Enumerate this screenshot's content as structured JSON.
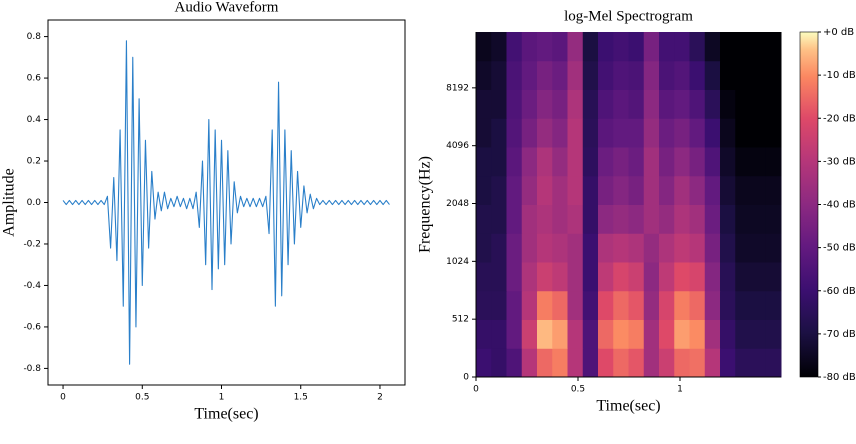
{
  "chart_data": [
    {
      "type": "line",
      "title": "Audio Waveform",
      "xlabel": "Time(sec)",
      "ylabel": "Amplitude",
      "color": "#2a7fc9",
      "xlim": [
        -0.095,
        2.158
      ],
      "ylim": [
        -0.88,
        0.88
      ],
      "xticks": [
        0,
        0.5,
        1,
        1.5,
        2
      ],
      "yticks": [
        -0.8,
        -0.6,
        -0.4,
        -0.2,
        {
          "value": 0,
          "label": "0.0"
        },
        0.2,
        0.4,
        0.6,
        0.8
      ],
      "x": [
        0,
        0.02,
        0.04,
        0.06,
        0.08,
        0.1,
        0.12,
        0.14,
        0.16,
        0.18,
        0.2,
        0.22,
        0.24,
        0.26,
        0.28,
        0.3,
        0.32,
        0.34,
        0.36,
        0.38,
        0.4,
        0.42,
        0.44,
        0.46,
        0.48,
        0.5,
        0.52,
        0.54,
        0.56,
        0.58,
        0.6,
        0.62,
        0.64,
        0.66,
        0.68,
        0.7,
        0.72,
        0.74,
        0.76,
        0.78,
        0.8,
        0.82,
        0.84,
        0.86,
        0.88,
        0.9,
        0.92,
        0.94,
        0.96,
        0.98,
        1,
        1.02,
        1.04,
        1.06,
        1.08,
        1.1,
        1.12,
        1.14,
        1.16,
        1.18,
        1.2,
        1.22,
        1.24,
        1.26,
        1.28,
        1.3,
        1.32,
        1.34,
        1.36,
        1.38,
        1.4,
        1.42,
        1.44,
        1.46,
        1.48,
        1.5,
        1.52,
        1.54,
        1.56,
        1.58,
        1.6,
        1.62,
        1.64,
        1.66,
        1.68,
        1.7,
        1.72,
        1.74,
        1.76,
        1.78,
        1.8,
        1.82,
        1.84,
        1.86,
        1.88,
        1.9,
        1.92,
        1.94,
        1.96,
        1.98,
        2,
        2.02,
        2.04,
        2.06
      ],
      "values": [
        0.01,
        -0.01,
        0.01,
        -0.01,
        0.01,
        -0.01,
        0.01,
        -0.01,
        0.01,
        -0.01,
        0.01,
        -0.01,
        0.01,
        -0.01,
        0.03,
        -0.22,
        0.12,
        -0.28,
        0.35,
        -0.5,
        0.78,
        -0.78,
        0.7,
        -0.6,
        0.5,
        -0.4,
        0.3,
        -0.22,
        0.15,
        -0.08,
        0.05,
        -0.04,
        0.05,
        -0.03,
        0.02,
        -0.02,
        0.03,
        -0.02,
        0.02,
        -0.03,
        0.02,
        -0.03,
        0.05,
        -0.12,
        0.2,
        -0.3,
        0.4,
        -0.42,
        0.35,
        -0.32,
        0.3,
        -0.3,
        0.25,
        -0.2,
        0.1,
        -0.05,
        0.03,
        -0.02,
        0.02,
        -0.02,
        0.02,
        -0.02,
        0.02,
        -0.02,
        0.03,
        -0.15,
        0.35,
        -0.5,
        0.58,
        -0.45,
        0.35,
        -0.3,
        0.25,
        -0.2,
        0.15,
        -0.12,
        0.08,
        -0.05,
        0.04,
        -0.03,
        0.02,
        -0.01,
        0.01,
        -0.01,
        0.01,
        -0.01,
        0.01,
        -0.01,
        0.01,
        -0.01,
        0.01,
        -0.01,
        0.01,
        -0.01,
        0.01,
        -0.01,
        0.01,
        -0.01,
        0.01,
        -0.01,
        0.01,
        -0.01,
        0.01,
        -0.01
      ]
    },
    {
      "type": "heatmap",
      "title": "log-Mel Spectrogram",
      "xlabel": "Time(sec)",
      "ylabel": "Frequency(Hz)",
      "cmap": "magma",
      "xlim": [
        0,
        1.495
      ],
      "ylim": [
        0,
        16000
      ],
      "yscale": "symlog",
      "linthresh": 512,
      "xticks": [
        0,
        0.5,
        1
      ],
      "yticks": [
        0,
        512,
        1024,
        2048,
        4096,
        8192
      ],
      "clim": [
        -80,
        0
      ],
      "colorbar_ticks": [
        {
          "value": 0,
          "label": "+0 dB"
        },
        {
          "value": -10,
          "label": "-10 dB"
        },
        {
          "value": -20,
          "label": "-20 dB"
        },
        {
          "value": -30,
          "label": "-30 dB"
        },
        {
          "value": -40,
          "label": "-40 dB"
        },
        {
          "value": -50,
          "label": "-50 dB"
        },
        {
          "value": -60,
          "label": "-60 dB"
        },
        {
          "value": -70,
          "label": "-70 dB"
        },
        {
          "value": -80,
          "label": "-80 dB"
        }
      ],
      "values": [
        [
          -60,
          -62,
          -55,
          -30,
          -15,
          -12,
          -30,
          -55,
          -20,
          -15,
          -18,
          -35,
          -25,
          -15,
          -14,
          -30,
          -60,
          -65,
          -65,
          -65
        ],
        [
          -62,
          -62,
          -50,
          -25,
          -5,
          -8,
          -30,
          -55,
          -15,
          -10,
          -12,
          -35,
          -20,
          -8,
          -10,
          -35,
          -62,
          -68,
          -68,
          -68
        ],
        [
          -65,
          -65,
          -50,
          -30,
          -12,
          -15,
          -35,
          -58,
          -20,
          -15,
          -18,
          -38,
          -22,
          -12,
          -15,
          -40,
          -65,
          -70,
          -70,
          -70
        ],
        [
          -66,
          -66,
          -48,
          -32,
          -25,
          -28,
          -35,
          -60,
          -28,
          -22,
          -25,
          -40,
          -28,
          -20,
          -22,
          -42,
          -66,
          -72,
          -72,
          -72
        ],
        [
          -68,
          -66,
          -48,
          -35,
          -30,
          -32,
          -35,
          -60,
          -32,
          -30,
          -32,
          -38,
          -32,
          -28,
          -30,
          -45,
          -68,
          -74,
          -74,
          -74
        ],
        [
          -68,
          -68,
          -50,
          -35,
          -32,
          -35,
          -32,
          -62,
          -40,
          -38,
          -40,
          -35,
          -38,
          -32,
          -35,
          -48,
          -70,
          -75,
          -75,
          -75
        ],
        [
          -70,
          -68,
          -50,
          -38,
          -30,
          -35,
          -30,
          -62,
          -45,
          -42,
          -45,
          -35,
          -42,
          -35,
          -40,
          -50,
          -72,
          -76,
          -76,
          -76
        ],
        [
          -70,
          -70,
          -52,
          -40,
          -32,
          -38,
          -30,
          -64,
          -48,
          -45,
          -48,
          -35,
          -45,
          -40,
          -45,
          -55,
          -74,
          -78,
          -78,
          -78
        ],
        [
          -72,
          -70,
          -54,
          -45,
          -38,
          -42,
          -30,
          -65,
          -52,
          -50,
          -50,
          -38,
          -48,
          -45,
          -50,
          -60,
          -76,
          -80,
          -80,
          -80
        ],
        [
          -72,
          -72,
          -55,
          -48,
          -42,
          -45,
          -32,
          -66,
          -55,
          -52,
          -54,
          -40,
          -52,
          -50,
          -55,
          -65,
          -78,
          -80,
          -80,
          -80
        ],
        [
          -74,
          -72,
          -56,
          -50,
          -45,
          -48,
          -35,
          -68,
          -58,
          -55,
          -56,
          -42,
          -56,
          -54,
          -60,
          -70,
          -80,
          -80,
          -80,
          -80
        ],
        [
          -76,
          -74,
          -58,
          -52,
          -50,
          -52,
          -38,
          -70,
          -60,
          -58,
          -60,
          -45,
          -58,
          -58,
          -65,
          -75,
          -80,
          -80,
          -80,
          -80
        ]
      ]
    }
  ]
}
